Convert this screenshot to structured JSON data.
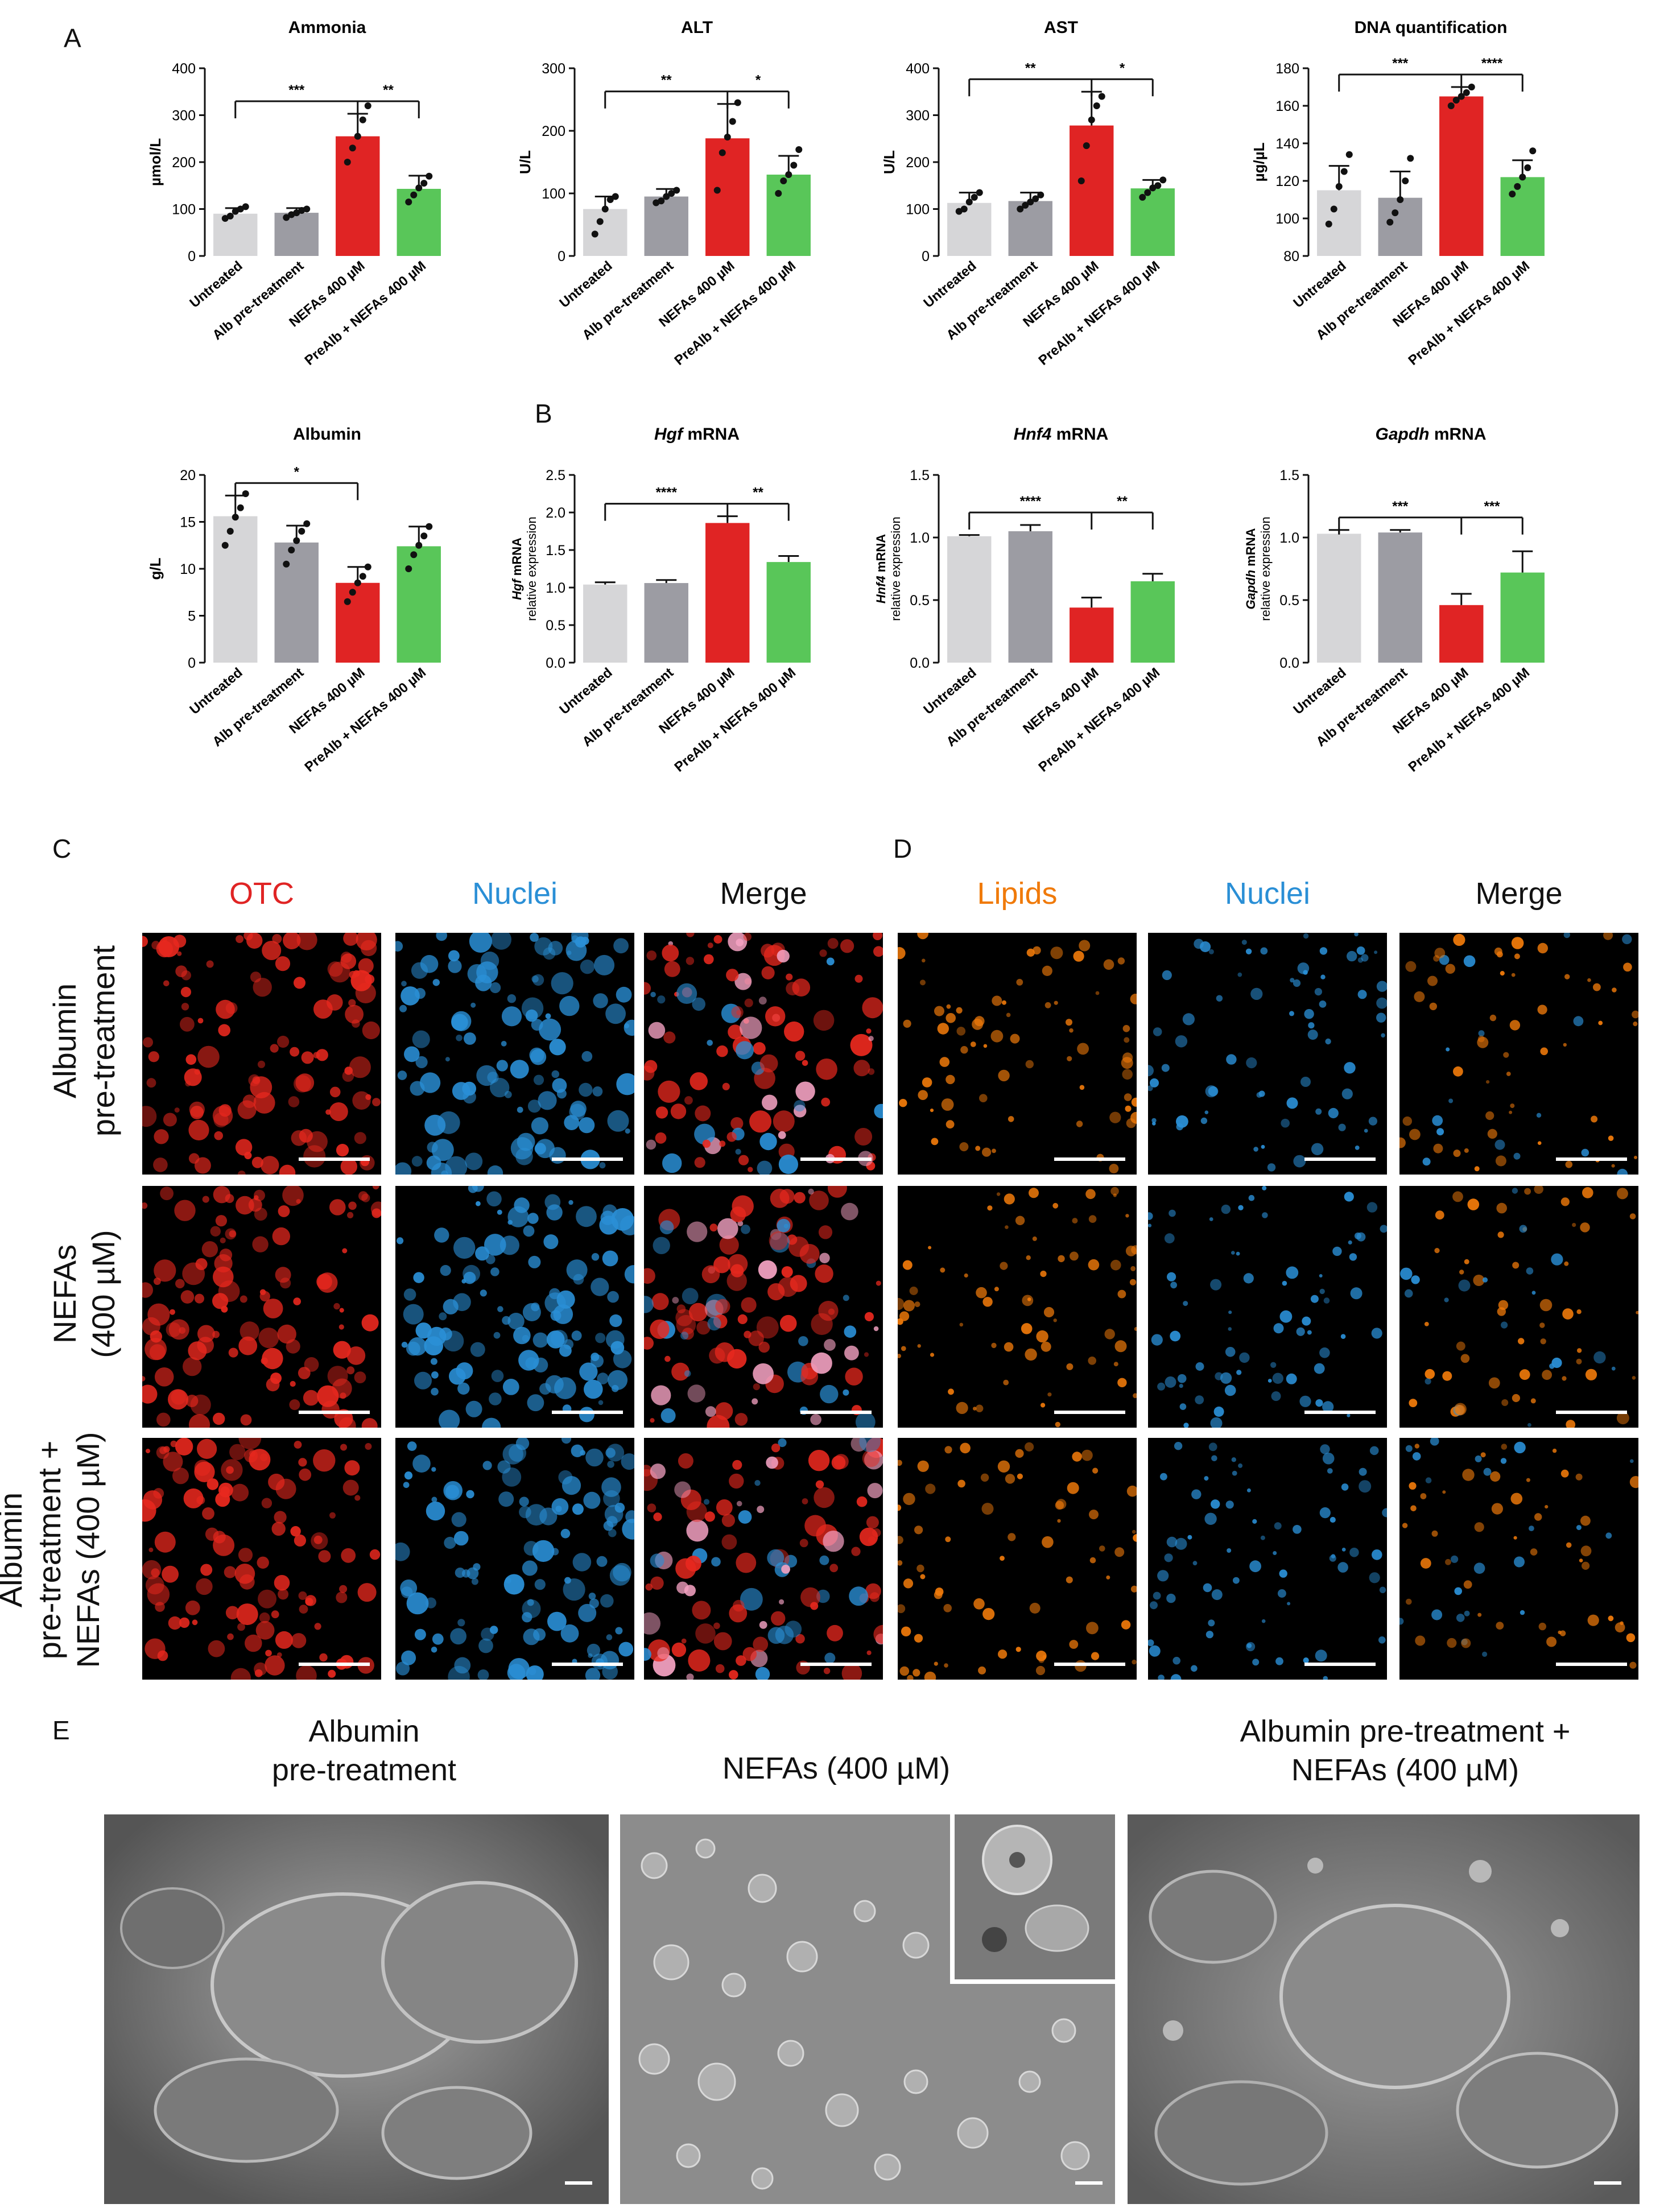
{
  "panel_labels": {
    "A": "A",
    "B": "B",
    "C": "C",
    "D": "D",
    "E": "E"
  },
  "colors": {
    "untreated": "#d6d6d8",
    "alb": "#9c9ca3",
    "nefa": "#e02424",
    "prealb": "#59c659",
    "otc": "#e8281e",
    "nuclei": "#2a8fd6",
    "lipids": "#f07a0a"
  },
  "chart_data": [
    {
      "id": "ammonia",
      "type": "bar",
      "title": "Ammonia",
      "ylabel": "µmol/L",
      "ylim": [
        0,
        400
      ],
      "yticks": [
        "0",
        "100",
        "200",
        "300",
        "400"
      ],
      "categories": [
        "Untreated",
        "Alb pre-treatment",
        "NEFAs 400 µM",
        "PreAlb + NEFAs 400 µM"
      ],
      "values": [
        90,
        92,
        255,
        143
      ],
      "errors": [
        12,
        10,
        48,
        28
      ],
      "points": [
        [
          80,
          85,
          95,
          100,
          105
        ],
        [
          82,
          88,
          92,
          97,
          100
        ],
        [
          200,
          230,
          255,
          290,
          320
        ],
        [
          115,
          130,
          145,
          155,
          170
        ]
      ],
      "sig": [
        {
          "from": 0,
          "to": 3,
          "split": 2,
          "left": "***",
          "right": "**"
        }
      ]
    },
    {
      "id": "alt",
      "type": "bar",
      "title": "ALT",
      "ylabel": "U/L",
      "ylim": [
        0,
        300
      ],
      "yticks": [
        "0",
        "100",
        "200",
        "300"
      ],
      "categories": [
        "Untreated",
        "Alb pre-treatment",
        "NEFAs 400 µM",
        "PreAlb + NEFAs 400 µM"
      ],
      "values": [
        75,
        95,
        188,
        130
      ],
      "errors": [
        20,
        12,
        55,
        30
      ],
      "points": [
        [
          35,
          55,
          75,
          90,
          95
        ],
        [
          85,
          88,
          95,
          100,
          105
        ],
        [
          105,
          165,
          190,
          215,
          245
        ],
        [
          100,
          120,
          130,
          145,
          170
        ]
      ],
      "sig": [
        {
          "from": 0,
          "to": 3,
          "split": 2,
          "left": "**",
          "right": "*"
        }
      ]
    },
    {
      "id": "ast",
      "type": "bar",
      "title": "AST",
      "ylabel": "U/L",
      "ylim": [
        0,
        400
      ],
      "yticks": [
        "0",
        "100",
        "200",
        "300",
        "400"
      ],
      "categories": [
        "Untreated",
        "Alb pre-treatment",
        "NEFAs 400 µM",
        "PreAlb + NEFAs 400 µM"
      ],
      "values": [
        113,
        117,
        278,
        144
      ],
      "errors": [
        22,
        18,
        72,
        18
      ],
      "points": [
        [
          95,
          100,
          115,
          125,
          135
        ],
        [
          100,
          108,
          115,
          122,
          130
        ],
        [
          160,
          235,
          290,
          320,
          340
        ],
        [
          125,
          135,
          145,
          150,
          162
        ]
      ],
      "sig": [
        {
          "from": 0,
          "to": 3,
          "split": 2,
          "left": "**",
          "right": "*"
        }
      ]
    },
    {
      "id": "dna",
      "type": "bar",
      "title": "DNA quantification",
      "ylabel": "µg/µL",
      "ylim": [
        80,
        180
      ],
      "yticks": [
        "80",
        "100",
        "120",
        "140",
        "160",
        "180"
      ],
      "categories": [
        "Untreated",
        "Alb pre-treatment",
        "NEFAs 400 µM",
        "PreAlb + NEFAs 400 µM"
      ],
      "values": [
        115,
        111,
        165,
        122
      ],
      "errors": [
        13,
        14,
        5,
        9
      ],
      "points": [
        [
          97,
          105,
          117,
          125,
          134
        ],
        [
          98,
          103,
          110,
          120,
          132
        ],
        [
          160,
          163,
          165,
          167,
          170
        ],
        [
          113,
          117,
          122,
          127,
          136
        ]
      ],
      "sig": [
        {
          "from": 0,
          "to": 3,
          "split": 2,
          "left": "***",
          "right": "****"
        }
      ]
    },
    {
      "id": "albumin",
      "type": "bar",
      "title": "Albumin",
      "ylabel": "g/L",
      "ylim": [
        0,
        20
      ],
      "yticks": [
        "0",
        "5",
        "10",
        "15",
        "20"
      ],
      "categories": [
        "Untreated",
        "Alb pre-treatment",
        "NEFAs 400 µM",
        "PreAlb + NEFAs 400 µM"
      ],
      "values": [
        15.6,
        12.8,
        8.5,
        12.4
      ],
      "errors": [
        2.2,
        1.8,
        1.7,
        2.1
      ],
      "points": [
        [
          12.5,
          14,
          15.5,
          16.5,
          18
        ],
        [
          10.5,
          12,
          13,
          14,
          14.8
        ],
        [
          6.5,
          7.5,
          8.5,
          9.2,
          10.2
        ],
        [
          10,
          11.5,
          12.5,
          13.5,
          14.5
        ]
      ],
      "sig": [
        {
          "from": 0,
          "to": 2,
          "split": null,
          "left": "*",
          "right": ""
        }
      ]
    },
    {
      "id": "hgf",
      "type": "bar",
      "title_italic": "Hgf",
      "title_rest": " mRNA",
      "ylabel_italic": "Hgf",
      "ylabel_rest": " mRNA",
      "ylabel2": "relative expression",
      "ylim": [
        0,
        2.5
      ],
      "yticks": [
        "0.0",
        "0.5",
        "1.0",
        "1.5",
        "2.0",
        "2.5"
      ],
      "categories": [
        "Untreated",
        "Alb pre-treatment",
        "NEFAs 400 µM",
        "PreAlb + NEFAs 400 µM"
      ],
      "values": [
        1.04,
        1.06,
        1.86,
        1.34
      ],
      "errors": [
        0.03,
        0.04,
        0.09,
        0.08
      ],
      "points": [],
      "sig": [
        {
          "from": 0,
          "to": 3,
          "split": 2,
          "left": "****",
          "right": "**"
        }
      ]
    },
    {
      "id": "hnf4",
      "type": "bar",
      "title_italic": "Hnf4",
      "title_rest": " mRNA",
      "ylabel_italic": "Hnf4",
      "ylabel_rest": " mRNA",
      "ylabel2": "relative expression",
      "ylim": [
        0,
        1.5
      ],
      "yticks": [
        "0.0",
        "0.5",
        "1.0",
        "1.5"
      ],
      "categories": [
        "Untreated",
        "Alb pre-treatment",
        "NEFAs 400 µM",
        "PreAlb + NEFAs 400 µM"
      ],
      "values": [
        1.01,
        1.05,
        0.44,
        0.65
      ],
      "errors": [
        0.01,
        0.05,
        0.08,
        0.06
      ],
      "points": [],
      "sig": [
        {
          "from": 0,
          "to": 3,
          "split": 2,
          "left": "****",
          "right": "**"
        }
      ]
    },
    {
      "id": "gapdh",
      "type": "bar",
      "title_italic": "Gapdh",
      "title_rest": " mRNA",
      "ylabel_italic": "Gapdh",
      "ylabel_rest": " mRNA",
      "ylabel2": "relative expression",
      "ylim": [
        0,
        1.5
      ],
      "yticks": [
        "0.0",
        "0.5",
        "1.0",
        "1.5"
      ],
      "categories": [
        "Untreated",
        "Alb pre-treatment",
        "NEFAs 400 µM",
        "PreAlb + NEFAs 400 µM"
      ],
      "values": [
        1.03,
        1.04,
        0.46,
        0.72
      ],
      "errors": [
        0.03,
        0.02,
        0.09,
        0.17
      ],
      "points": [],
      "sig": [
        {
          "from": 0,
          "to": 3,
          "split": 2,
          "left": "***",
          "right": "***"
        }
      ]
    }
  ],
  "panel_c": {
    "columns": [
      "OTC",
      "Nuclei",
      "Merge"
    ]
  },
  "panel_d": {
    "columns": [
      "Lipids",
      "Nuclei",
      "Merge"
    ]
  },
  "rows": [
    "Albumin\npre-treatment",
    "NEFAs\n(400 µM)",
    "Albumin\npre-treatment +\nNEFAs (400 µM)"
  ],
  "panel_e": {
    "titles": [
      "Albumin\npre-treatment",
      "NEFAs (400 µM)",
      "Albumin pre-treatment +\nNEFAs (400 µM)"
    ]
  }
}
